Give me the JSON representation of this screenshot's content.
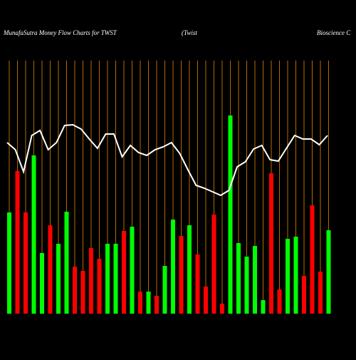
{
  "chart_data": {
    "type": "bar",
    "title_parts": [
      "MunafaSutra  Money Flow  Charts for TWST",
      "(Twist",
      "Bioscience   C"
    ],
    "categories": [
      null,
      null,
      null,
      null,
      null,
      null,
      null,
      null,
      null,
      null,
      null,
      null,
      null,
      null,
      null,
      null,
      null,
      null,
      null,
      null,
      null,
      null,
      null,
      null,
      null,
      null,
      null,
      null,
      null,
      null,
      null,
      null,
      null,
      null,
      null,
      null,
      null,
      null,
      null,
      null
    ],
    "values": [
      142,
      200,
      142,
      222,
      85,
      124,
      98,
      143,
      66,
      60,
      92,
      77,
      98,
      98,
      116,
      122,
      31,
      31,
      25,
      67,
      132,
      109,
      124,
      83,
      38,
      139,
      14,
      278,
      99,
      80,
      95,
      19,
      197,
      34,
      105,
      108,
      53,
      152,
      59,
      117
    ],
    "colors": [
      "#00ff00",
      "#ff0000",
      "#ff0000",
      "#00ff00",
      "#00ff00",
      "#ff0000",
      "#00ff00",
      "#00ff00",
      "#ff0000",
      "#ff0000",
      "#ff0000",
      "#ff0000",
      "#00ff00",
      "#00ff00",
      "#ff0000",
      "#00ff00",
      "#ff0000",
      "#00ff00",
      "#ff0000",
      "#00ff00",
      "#00ff00",
      "#ff0000",
      "#00ff00",
      "#ff0000",
      "#ff0000",
      "#ff0000",
      "#ff0000",
      "#00ff00",
      "#00ff00",
      "#00ff00",
      "#00ff00",
      "#00ff00",
      "#ff0000",
      "#ff0000",
      "#00ff00",
      "#00ff00",
      "#ff0000",
      "#ff0000",
      "#ff0000",
      "#00ff00"
    ],
    "line": {
      "color": "#ffffff",
      "values": [
        240,
        230,
        199,
        250,
        257,
        230,
        240,
        264,
        265,
        259,
        245,
        232,
        252,
        252,
        220,
        236,
        226,
        222,
        230,
        234,
        240,
        225,
        202,
        180,
        176,
        171,
        166,
        173,
        206,
        213,
        231,
        236,
        216,
        214,
        232,
        250,
        245,
        245,
        237,
        250
      ]
    },
    "ylim": [
      0,
      300
    ],
    "background": "#000000",
    "guide_color": "#b36b00"
  }
}
